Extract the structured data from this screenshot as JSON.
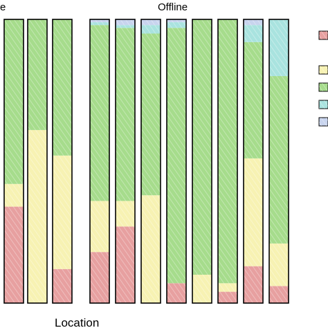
{
  "chart_data": {
    "type": "bar",
    "stacked": true,
    "normalized": true,
    "ylim": [
      0,
      1
    ],
    "xlabel": "Location",
    "facets": [
      {
        "label": "e",
        "bar_count": 3
      },
      {
        "label": "Offline",
        "bar_count": 8
      }
    ],
    "series": [
      {
        "color": "#e7a0a0",
        "values": [
          0.34,
          0.0,
          0.12,
          0.18,
          0.27,
          0.0,
          0.07,
          0.0,
          0.04,
          0.13,
          0.06
        ]
      },
      {
        "color": "#f7f2b3",
        "values": [
          0.08,
          0.61,
          0.4,
          0.18,
          0.09,
          0.38,
          0.0,
          0.1,
          0.03,
          0.38,
          0.15
        ]
      },
      {
        "color": "#a6dc8c",
        "values": [
          0.58,
          0.39,
          0.48,
          0.62,
          0.61,
          0.57,
          0.9,
          0.9,
          0.93,
          0.41,
          0.59
        ]
      },
      {
        "color": "#a9e3df",
        "values": [
          0.0,
          0.0,
          0.0,
          0.01,
          0.01,
          0.03,
          0.02,
          0.0,
          0.0,
          0.06,
          0.2
        ]
      },
      {
        "color": "#c8d4ee",
        "values": [
          0.0,
          0.0,
          0.0,
          0.01,
          0.02,
          0.02,
          0.01,
          0.0,
          0.0,
          0.02,
          0.0
        ]
      }
    ]
  }
}
